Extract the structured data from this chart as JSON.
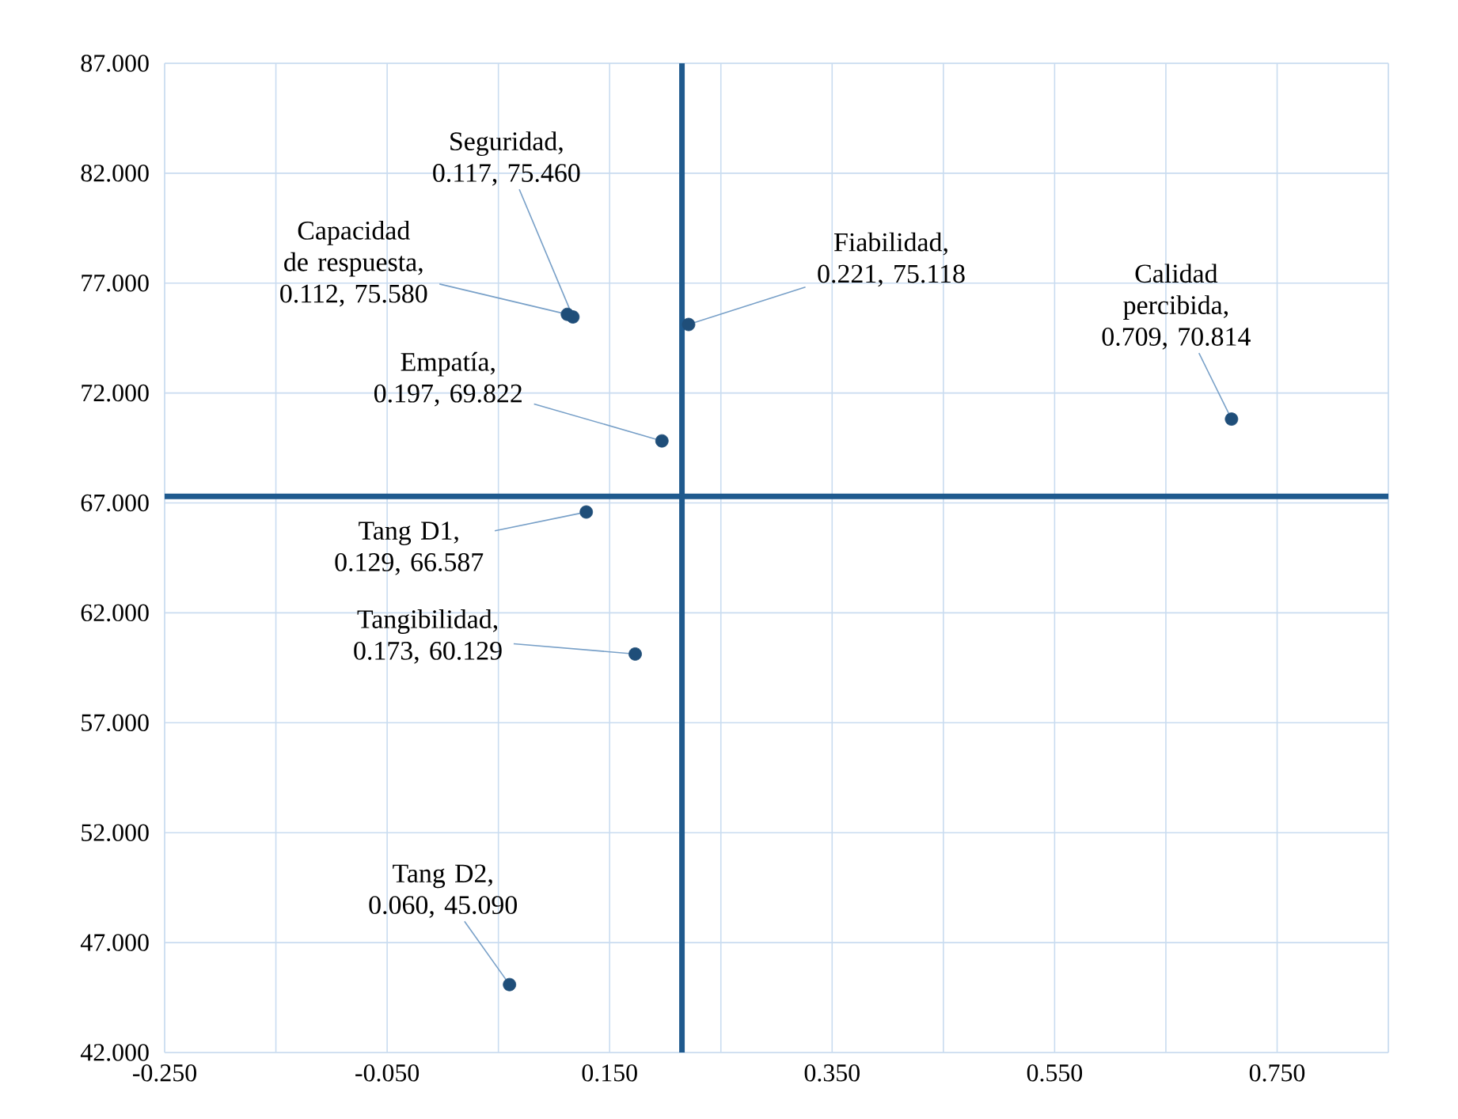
{
  "chart_data": {
    "type": "scatter",
    "marker": "circle",
    "grid": true,
    "x": [
      0.117,
      0.112,
      0.221,
      0.709,
      0.197,
      0.129,
      0.173,
      0.06
    ],
    "values": [
      75.46,
      75.58,
      75.118,
      70.814,
      69.822,
      66.587,
      60.129,
      45.09
    ],
    "color": "#1f4e79",
    "xlim": [
      -0.25,
      0.85
    ],
    "xticks": [
      {
        "value": -0.25,
        "label": "-0.250"
      },
      {
        "value": -0.15,
        "label": null
      },
      {
        "value": -0.05,
        "label": "-0.050"
      },
      {
        "value": 0.05,
        "label": null
      },
      {
        "value": 0.15,
        "label": "0.150"
      },
      {
        "value": 0.25,
        "label": null
      },
      {
        "value": 0.35,
        "label": "0.350"
      },
      {
        "value": 0.45,
        "label": null
      },
      {
        "value": 0.55,
        "label": "0.550"
      },
      {
        "value": 0.65,
        "label": null
      },
      {
        "value": 0.75,
        "label": "0.750"
      },
      {
        "value": 0.85,
        "label": null
      }
    ],
    "ylim": [
      42,
      87
    ],
    "yticks": [
      {
        "value": 42,
        "label": "42.000"
      },
      {
        "value": 47,
        "label": "47.000"
      },
      {
        "value": 52,
        "label": "52.000"
      },
      {
        "value": 57,
        "label": "57.000"
      },
      {
        "value": 62,
        "label": "62.000"
      },
      {
        "value": 67,
        "label": "67.000"
      },
      {
        "value": 72,
        "label": "72.000"
      },
      {
        "value": 77,
        "label": "77.000"
      },
      {
        "value": 82,
        "label": "82.000"
      },
      {
        "value": 87,
        "label": "87.000"
      }
    ],
    "ref_lines": [
      {
        "axis": "x",
        "value": 0.215,
        "color": "#1f5a8e"
      },
      {
        "axis": "y",
        "value": 67.3,
        "color": "#1f5a8e"
      }
    ],
    "annotations": [
      {
        "text": "Seguridad, 0.117, 75.460",
        "x": 0.117,
        "y": 75.46
      },
      {
        "text": "Capacidad de respuesta, 0.112, 75.580",
        "x": 0.112,
        "y": 75.58
      },
      {
        "text": "Fiabilidad, 0.221, 75.118",
        "x": 0.221,
        "y": 75.118
      },
      {
        "text": "Calidad percibida, 0.709, 70.814",
        "x": 0.709,
        "y": 70.814
      },
      {
        "text": "Empatía, 0.197, 69.822",
        "x": 0.197,
        "y": 69.822
      },
      {
        "text": "Tang D1, 0.129, 66.587",
        "x": 0.129,
        "y": 66.587
      },
      {
        "text": "Tangibilidad, 0.173, 60.129",
        "x": 0.173,
        "y": 60.129
      },
      {
        "text": "Tang D2, 0.060, 45.090",
        "x": 0.06,
        "y": 45.09
      }
    ]
  }
}
